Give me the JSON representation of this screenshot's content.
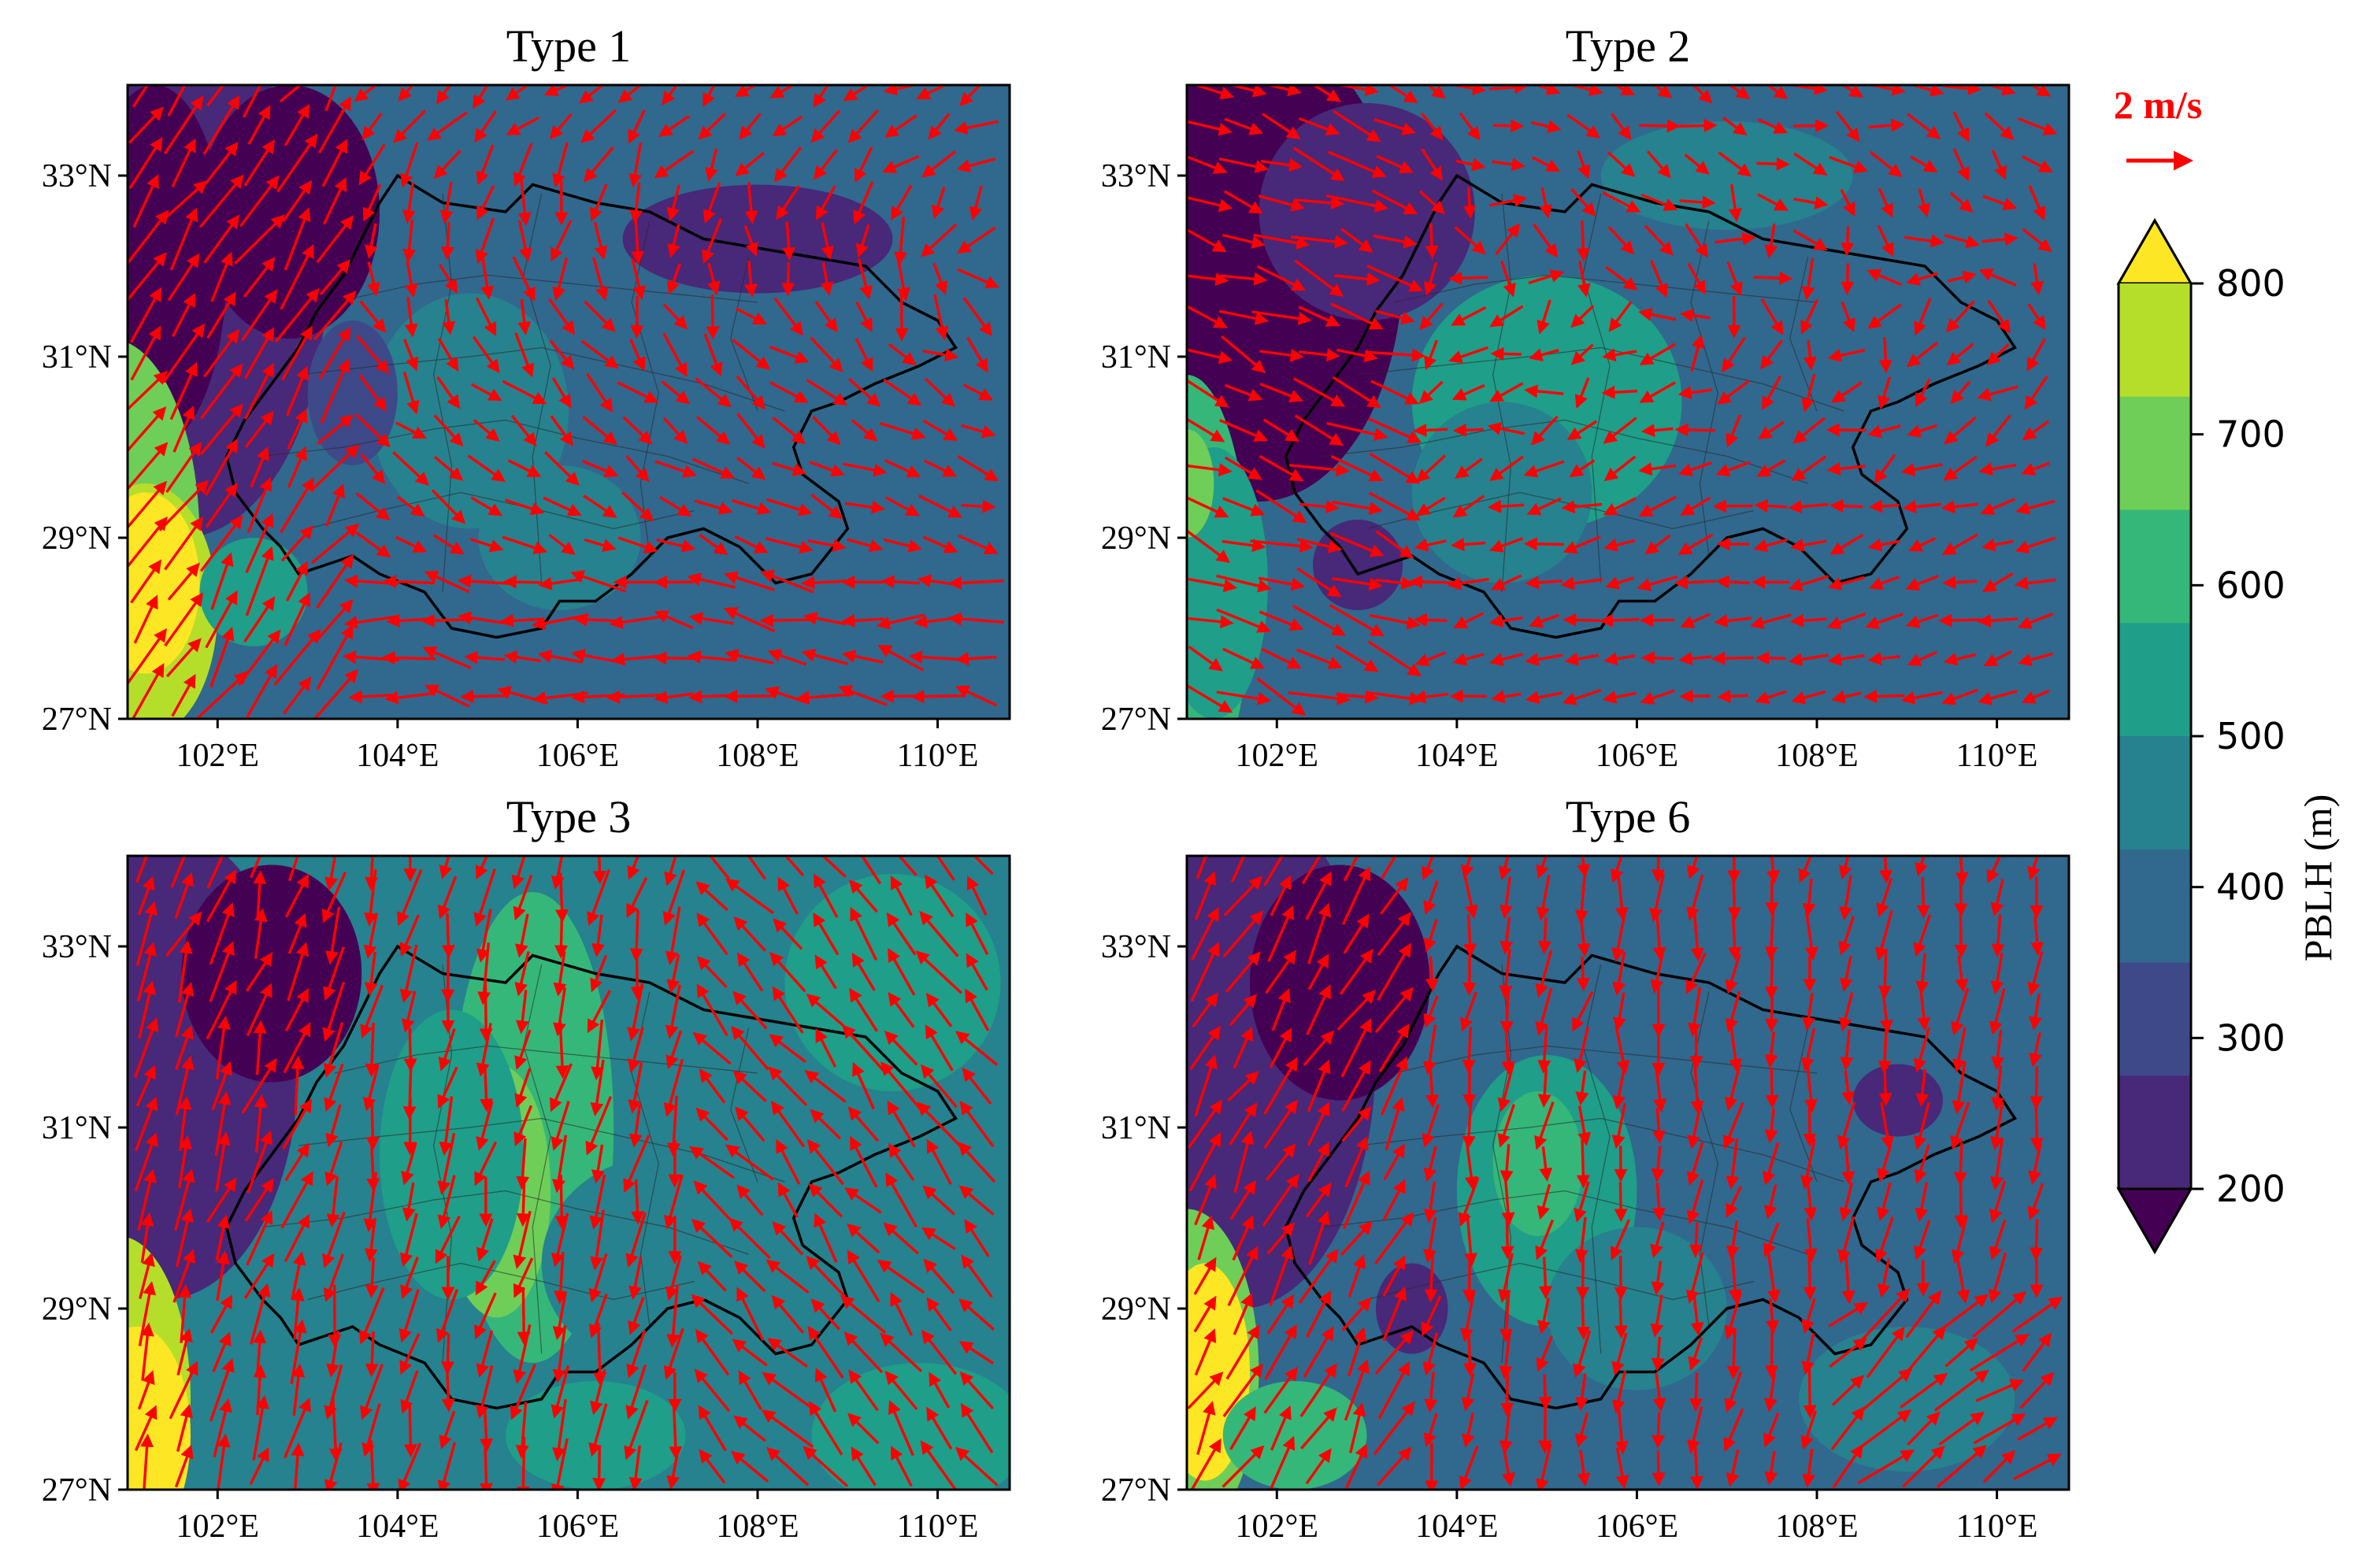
{
  "map_data": {
    "panels": [
      {
        "title": "Type 1"
      },
      {
        "title": "Type 2"
      },
      {
        "title": "Type 3"
      },
      {
        "title": "Type 6"
      }
    ],
    "lon_ticks": [
      "102°E",
      "104°E",
      "106°E",
      "108°E",
      "110°E"
    ],
    "lat_ticks": [
      "33°N",
      "31°N",
      "29°N",
      "27°N"
    ],
    "extent": {
      "lon": [
        101,
        110.8
      ],
      "lat": [
        27,
        34
      ]
    },
    "variable": "PBLH",
    "vector_reference": {
      "label": "2 m/s",
      "color": "#ff0000"
    },
    "colorbar": {
      "label": "PBLH (m)",
      "tick_labels": [
        "800",
        "700",
        "600",
        "500",
        "400",
        "300",
        "200"
      ],
      "levels": [
        200,
        250,
        300,
        350,
        400,
        450,
        500,
        550,
        600,
        650,
        700,
        750,
        800
      ],
      "colors": [
        "#440154",
        "#482878",
        "#3e4989",
        "#31688e",
        "#26828e",
        "#1f9e89",
        "#35b779",
        "#6ece58",
        "#b5de2b",
        "#fde725"
      ]
    },
    "arrow_color": "#ff0000",
    "boundary_color": "#000000"
  }
}
